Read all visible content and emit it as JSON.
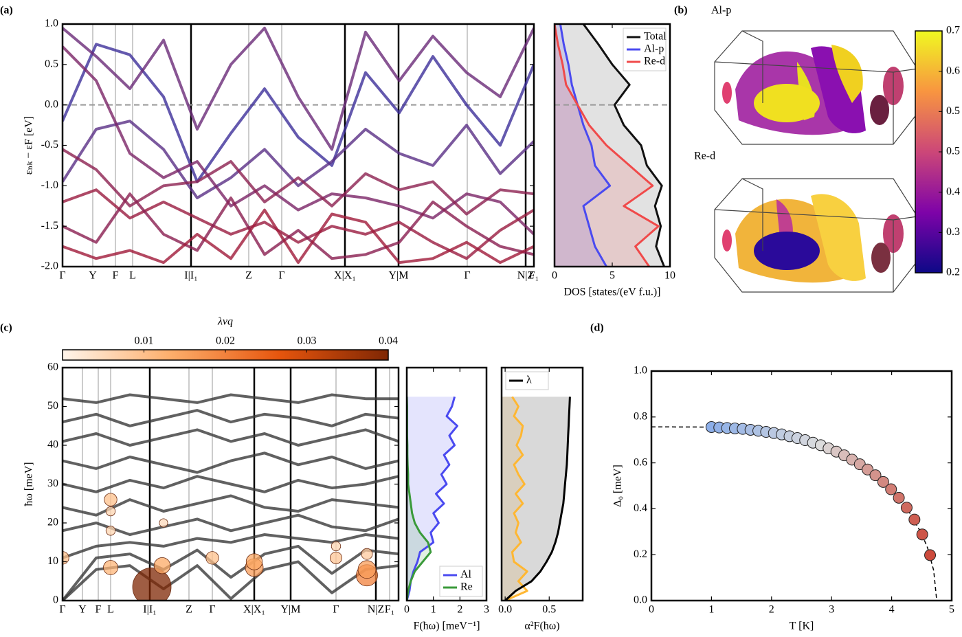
{
  "chart_data": [
    {
      "type": "line",
      "panel": "(a)",
      "kpath": true,
      "ylabel": "εₙₖ − εF [eV]",
      "xlim": [
        0,
        6.86
      ],
      "ylim": [
        -2,
        1
      ],
      "xticks": [
        {
          "value": 0,
          "label": "Γ"
        },
        {
          "value": 0.44,
          "label": "Y"
        },
        {
          "value": 0.77,
          "label": "F"
        },
        {
          "value": 1.02,
          "label": "L"
        },
        {
          "value": 1.87,
          "label": "I|I₁"
        },
        {
          "value": 2.71,
          "label": "Z"
        },
        {
          "value": 3.19,
          "label": "Γ"
        },
        {
          "value": 4.11,
          "label": "X|X₁"
        },
        {
          "value": 4.89,
          "label": "Y|M"
        },
        {
          "value": 5.89,
          "label": "Γ"
        },
        {
          "value": 6.74,
          "label": "N|Z"
        },
        {
          "value": 6.86,
          "label": "F₁"
        }
      ],
      "yticks": [
        {
          "value": -2,
          "label": "-2.0"
        },
        -1.5,
        {
          "value": -1,
          "label": "-1.0"
        },
        -0.5,
        {
          "value": 0,
          "label": "0.0"
        },
        0.5,
        {
          "value": 1,
          "label": "1.0"
        }
      ],
      "reference_line": 0,
      "x": [
        0,
        0.49,
        0.98,
        1.47,
        1.96,
        2.45,
        2.94,
        3.43,
        3.92,
        4.41,
        4.9,
        5.39,
        5.88,
        6.37,
        6.86
      ],
      "series": [
        {
          "color": "#3d2f9a",
          "values": [
            -0.2,
            0.75,
            0.62,
            0.1,
            -0.95,
            -0.35,
            0.2,
            -0.4,
            -0.75,
            0.4,
            -0.1,
            0.6,
            0.0,
            -0.5,
            0.5
          ]
        },
        {
          "color": "#5a2f86",
          "values": [
            -0.95,
            -0.3,
            -0.2,
            -0.55,
            -1.15,
            -0.9,
            -0.55,
            -1.0,
            -0.7,
            -0.3,
            -0.6,
            -0.75,
            -0.25,
            -0.85,
            -0.45
          ]
        },
        {
          "color": "#7a2466",
          "values": [
            0.72,
            0.3,
            -0.6,
            -0.9,
            -0.7,
            -1.25,
            -1.0,
            -1.3,
            -1.1,
            -1.15,
            -1.25,
            -1.4,
            -1.1,
            -1.2,
            -1.6
          ]
        },
        {
          "color": "#9a1c40",
          "values": [
            -1.2,
            -1.05,
            -1.4,
            -1.2,
            -1.4,
            -1.6,
            -1.45,
            -1.7,
            -1.5,
            -1.6,
            -1.45,
            -1.7,
            -1.9,
            -1.55,
            -1.3
          ]
        },
        {
          "color": "#8a1e50",
          "values": [
            -1.5,
            -1.7,
            -1.1,
            -1.6,
            -1.8,
            -1.15,
            -1.85,
            -1.55,
            -1.9,
            -1.85,
            -1.7,
            -1.2,
            -1.5,
            -1.75,
            -1.85
          ]
        },
        {
          "color": "#a01a3a",
          "values": [
            -1.75,
            -1.9,
            -1.8,
            -1.95,
            -1.6,
            -1.9,
            -1.3,
            -1.95,
            -1.35,
            -1.45,
            -1.95,
            -1.9,
            -1.7,
            -1.95,
            -1.75
          ]
        },
        {
          "color": "#6a2a78",
          "values": [
            0.95,
            0.6,
            0.2,
            0.8,
            -0.3,
            0.5,
            0.95,
            0.1,
            -0.55,
            0.9,
            0.3,
            0.85,
            0.4,
            0.1,
            0.95
          ]
        },
        {
          "color": "#8c2050",
          "values": [
            -0.55,
            -0.8,
            -1.25,
            -1.0,
            -0.95,
            -0.7,
            -1.2,
            -0.9,
            -1.25,
            -0.85,
            -1.05,
            -0.95,
            -1.35,
            -1.05,
            -1.1
          ]
        }
      ]
    },
    {
      "type": "line",
      "orientation": "horizontal",
      "fill": true,
      "xlabel": "DOS [states/(eV f.u.)]",
      "xlim": [
        0,
        10
      ],
      "ylim": [
        -2,
        1
      ],
      "xticks": [
        0,
        5,
        10
      ],
      "reference_line": 0,
      "legend": "upper right",
      "y": [
        -2,
        -1.75,
        -1.5,
        -1.25,
        -1,
        -0.75,
        -0.5,
        -0.25,
        0,
        0.25,
        0.5,
        0.75,
        1
      ],
      "series": [
        {
          "name": "Total",
          "color": "#111111",
          "values": [
            9.5,
            8.8,
            9.2,
            8.7,
            9.3,
            8.0,
            7.5,
            6.0,
            5.2,
            6.5,
            5.0,
            3.8,
            2.5
          ]
        },
        {
          "name": "Al-p",
          "color": "#4a4af0",
          "values": [
            4.5,
            3.5,
            3.0,
            2.5,
            4.8,
            3.5,
            3.2,
            2.5,
            2.0,
            1.5,
            1.2,
            0.8,
            0.5
          ]
        },
        {
          "name": "Re-d",
          "color": "#f04a4a",
          "values": [
            8.2,
            7.0,
            9.0,
            6.0,
            8.5,
            6.5,
            4.5,
            3.0,
            2.0,
            1.0,
            0.7,
            0.3,
            0.0
          ]
        }
      ]
    },
    {
      "type": "colorbar",
      "panel": "(b)",
      "labels": [
        "Al-p",
        "Re-d"
      ],
      "ylim": [
        0.2,
        0.7
      ],
      "yticks": [
        0.2,
        {
          "value": 0.2833,
          "label": "0.3"
        },
        {
          "value": 0.3667,
          "label": "0.4"
        },
        {
          "value": 0.45,
          "label": "0.5"
        },
        {
          "value": 0.5333,
          "label": "0.5"
        },
        {
          "value": 0.6167,
          "label": "0.6"
        },
        0.7
      ],
      "colors": [
        "#0d0887",
        "#7e03a8",
        "#cc4778",
        "#f89540",
        "#f0f921"
      ]
    },
    {
      "type": "colorbar",
      "orientation": "horizontal",
      "panel": "(c)",
      "label": "λνq",
      "xlim": [
        0,
        0.04
      ],
      "xticks": [
        0.01,
        0.02,
        0.03,
        0.04
      ],
      "colors": [
        "#fff5eb",
        "#fdae6b",
        "#e6550d",
        "#7f2704"
      ]
    },
    {
      "type": "line",
      "kpath": true,
      "ylabel": "ħω [meV]",
      "xlim": [
        0,
        4.89
      ],
      "ylim": [
        0,
        60
      ],
      "xticks": [
        {
          "value": 0,
          "label": "Γ"
        },
        {
          "value": 0.29,
          "label": "Y"
        },
        {
          "value": 0.52,
          "label": "F"
        },
        {
          "value": 0.7,
          "label": "L"
        },
        {
          "value": 1.27,
          "label": "I|I₁"
        },
        {
          "value": 1.84,
          "label": "Z"
        },
        {
          "value": 2.18,
          "label": "Γ"
        },
        {
          "value": 2.79,
          "label": "X|X₁"
        },
        {
          "value": 3.32,
          "label": "Y|M"
        },
        {
          "value": 3.98,
          "label": "Γ"
        },
        {
          "value": 4.56,
          "label": "N|Z"
        },
        {
          "value": 4.76,
          "label": "F₁"
        }
      ],
      "yticks": [
        0,
        10,
        20,
        30,
        40,
        50,
        60
      ],
      "x": [
        0,
        0.49,
        0.98,
        1.47,
        1.96,
        2.45,
        2.94,
        3.43,
        3.92,
        4.41,
        4.89
      ],
      "series": [
        {
          "color": "#3a3a3a",
          "values": [
            0,
            8,
            9,
            3,
            9,
            0.5,
            8,
            10,
            2,
            8,
            9
          ]
        },
        {
          "color": "#3a3a3a",
          "values": [
            0,
            11,
            12,
            8,
            13,
            6,
            12,
            14,
            7,
            13,
            12
          ]
        },
        {
          "color": "#3a3a3a",
          "values": [
            11,
            14,
            15,
            14,
            16,
            15,
            17,
            16,
            15,
            17,
            16
          ]
        },
        {
          "color": "#3a3a3a",
          "values": [
            18,
            20,
            17,
            19,
            21,
            18,
            20,
            22,
            19,
            18,
            21
          ]
        },
        {
          "color": "#3a3a3a",
          "values": [
            24,
            22,
            26,
            23,
            25,
            27,
            24,
            23,
            26,
            25,
            24
          ]
        },
        {
          "color": "#3a3a3a",
          "values": [
            30,
            28,
            31,
            29,
            32,
            30,
            28,
            31,
            29,
            30,
            32
          ]
        },
        {
          "color": "#3a3a3a",
          "values": [
            36,
            34,
            37,
            35,
            33,
            36,
            38,
            35,
            37,
            34,
            36
          ]
        },
        {
          "color": "#3a3a3a",
          "values": [
            41,
            43,
            40,
            42,
            44,
            41,
            43,
            40,
            42,
            44,
            41
          ]
        },
        {
          "color": "#3a3a3a",
          "values": [
            46,
            48,
            45,
            47,
            49,
            46,
            48,
            47,
            45,
            48,
            47
          ]
        },
        {
          "color": "#3a3a3a",
          "values": [
            52,
            51,
            53,
            52,
            51,
            53,
            52,
            51,
            53,
            52,
            52
          ]
        }
      ],
      "bubbles": {
        "x": [
          1.3,
          1.45,
          0.7,
          0.7,
          0.7,
          0,
          2.18,
          2.79,
          2.79,
          3.98,
          4.43,
          4.43,
          1.47,
          0.7,
          3.98,
          4.43
        ],
        "y": [
          3.5,
          9,
          8.5,
          26,
          18,
          11,
          11,
          8.5,
          10,
          11,
          6.5,
          8,
          20,
          23,
          14,
          12
        ],
        "size": [
          0.04,
          0.014,
          0.012,
          0.01,
          0.006,
          0.01,
          0.01,
          0.016,
          0.014,
          0.009,
          0.02,
          0.016,
          0.005,
          0.006,
          0.006,
          0.008
        ]
      }
    },
    {
      "type": "line",
      "orientation": "horizontal",
      "fill": true,
      "xlabel": "F(ħω) [meV⁻¹]",
      "xlim": [
        0,
        3
      ],
      "ylim": [
        0,
        60
      ],
      "xticks": [
        0,
        1,
        2,
        3
      ],
      "legend": "lower right",
      "y": [
        0,
        2.5,
        5,
        7.5,
        10,
        12.5,
        15,
        17.5,
        20,
        22.5,
        25,
        27.5,
        30,
        32.5,
        35,
        37.5,
        40,
        42.5,
        45,
        47.5,
        50,
        52.5
      ],
      "series": [
        {
          "name": "Al",
          "color": "#4a4af0",
          "values": [
            0,
            0.1,
            0.15,
            0.25,
            0.4,
            0.5,
            1.0,
            0.9,
            1.2,
            1.0,
            1.4,
            1.1,
            1.5,
            1.3,
            1.6,
            1.4,
            1.8,
            1.6,
            1.9,
            1.5,
            1.7,
            1.8
          ]
        },
        {
          "name": "Re",
          "color": "#3a9a3a",
          "values": [
            0,
            0.05,
            0.15,
            0.3,
            0.6,
            0.9,
            0.8,
            0.5,
            0.3,
            0.2,
            0.15,
            0.1,
            0.05,
            0.05,
            0.03,
            0.02,
            0.02,
            0.01,
            0.01,
            0.01,
            0.01,
            0.0
          ]
        }
      ]
    },
    {
      "type": "line",
      "orientation": "horizontal",
      "fill": true,
      "xlabel": "α²F(ħω)",
      "xlim": [
        -0.04,
        0.88
      ],
      "ylim": [
        0,
        60
      ],
      "xticks": [
        {
          "value": 0,
          "label": "0.0"
        },
        0.5
      ],
      "legend": "upper left",
      "y": [
        0,
        2.5,
        5,
        7.5,
        10,
        12.5,
        15,
        17.5,
        20,
        22.5,
        25,
        27.5,
        30,
        32.5,
        35,
        37.5,
        40,
        42.5,
        45,
        47.5,
        50,
        52.5
      ],
      "series": [
        {
          "color": "#ffb732",
          "values": [
            0,
            0.25,
            0.15,
            0.25,
            0.1,
            0.08,
            0.18,
            0.12,
            0.15,
            0.1,
            0.2,
            0.12,
            0.22,
            0.15,
            0.1,
            0.2,
            0.13,
            0.18,
            0.2,
            0.1,
            0.15,
            0.08
          ]
        },
        {
          "name": "λ",
          "color": "#000000",
          "values": [
            0,
            0.12,
            0.3,
            0.4,
            0.47,
            0.53,
            0.57,
            0.6,
            0.62,
            0.64,
            0.66,
            0.67,
            0.68,
            0.69,
            0.7,
            0.705,
            0.71,
            0.715,
            0.72,
            0.725,
            0.73,
            0.735
          ]
        }
      ]
    },
    {
      "type": "scatter",
      "panel": "(d)",
      "xlabel": "T [K]",
      "ylabel": "Δ₀ [meV]",
      "xlim": [
        0,
        5
      ],
      "ylim": [
        0,
        1
      ],
      "xticks": [
        0,
        1,
        2,
        3,
        4,
        5
      ],
      "yticks": [
        {
          "value": 0,
          "label": "0.0"
        },
        0.2,
        0.4,
        0.6,
        0.8,
        {
          "value": 1,
          "label": "1.0"
        }
      ],
      "colors": [
        "#8caee8",
        "#dcdcdc",
        "#cc4a3c"
      ],
      "x": [
        1.0,
        1.13,
        1.26,
        1.39,
        1.52,
        1.65,
        1.78,
        1.91,
        2.04,
        2.17,
        2.3,
        2.43,
        2.56,
        2.69,
        2.82,
        2.95,
        3.08,
        3.21,
        3.34,
        3.47,
        3.6,
        3.73,
        3.86,
        3.99,
        4.12,
        4.25,
        4.38,
        4.51,
        4.64
      ],
      "values": [
        0.756,
        0.754,
        0.752,
        0.75,
        0.748,
        0.744,
        0.74,
        0.735,
        0.73,
        0.724,
        0.716,
        0.708,
        0.699,
        0.688,
        0.677,
        0.663,
        0.649,
        0.633,
        0.614,
        0.594,
        0.571,
        0.546,
        0.517,
        0.485,
        0.448,
        0.405,
        0.353,
        0.288,
        0.198
      ],
      "fit": {
        "x": [
          0,
          1,
          1.5,
          2,
          2.5,
          3,
          3.5,
          4,
          4.25,
          4.5,
          4.6,
          4.7,
          4.75
        ],
        "y": [
          0.757,
          0.756,
          0.749,
          0.732,
          0.704,
          0.658,
          0.589,
          0.481,
          0.405,
          0.291,
          0.229,
          0.131,
          0.0
        ]
      }
    }
  ]
}
